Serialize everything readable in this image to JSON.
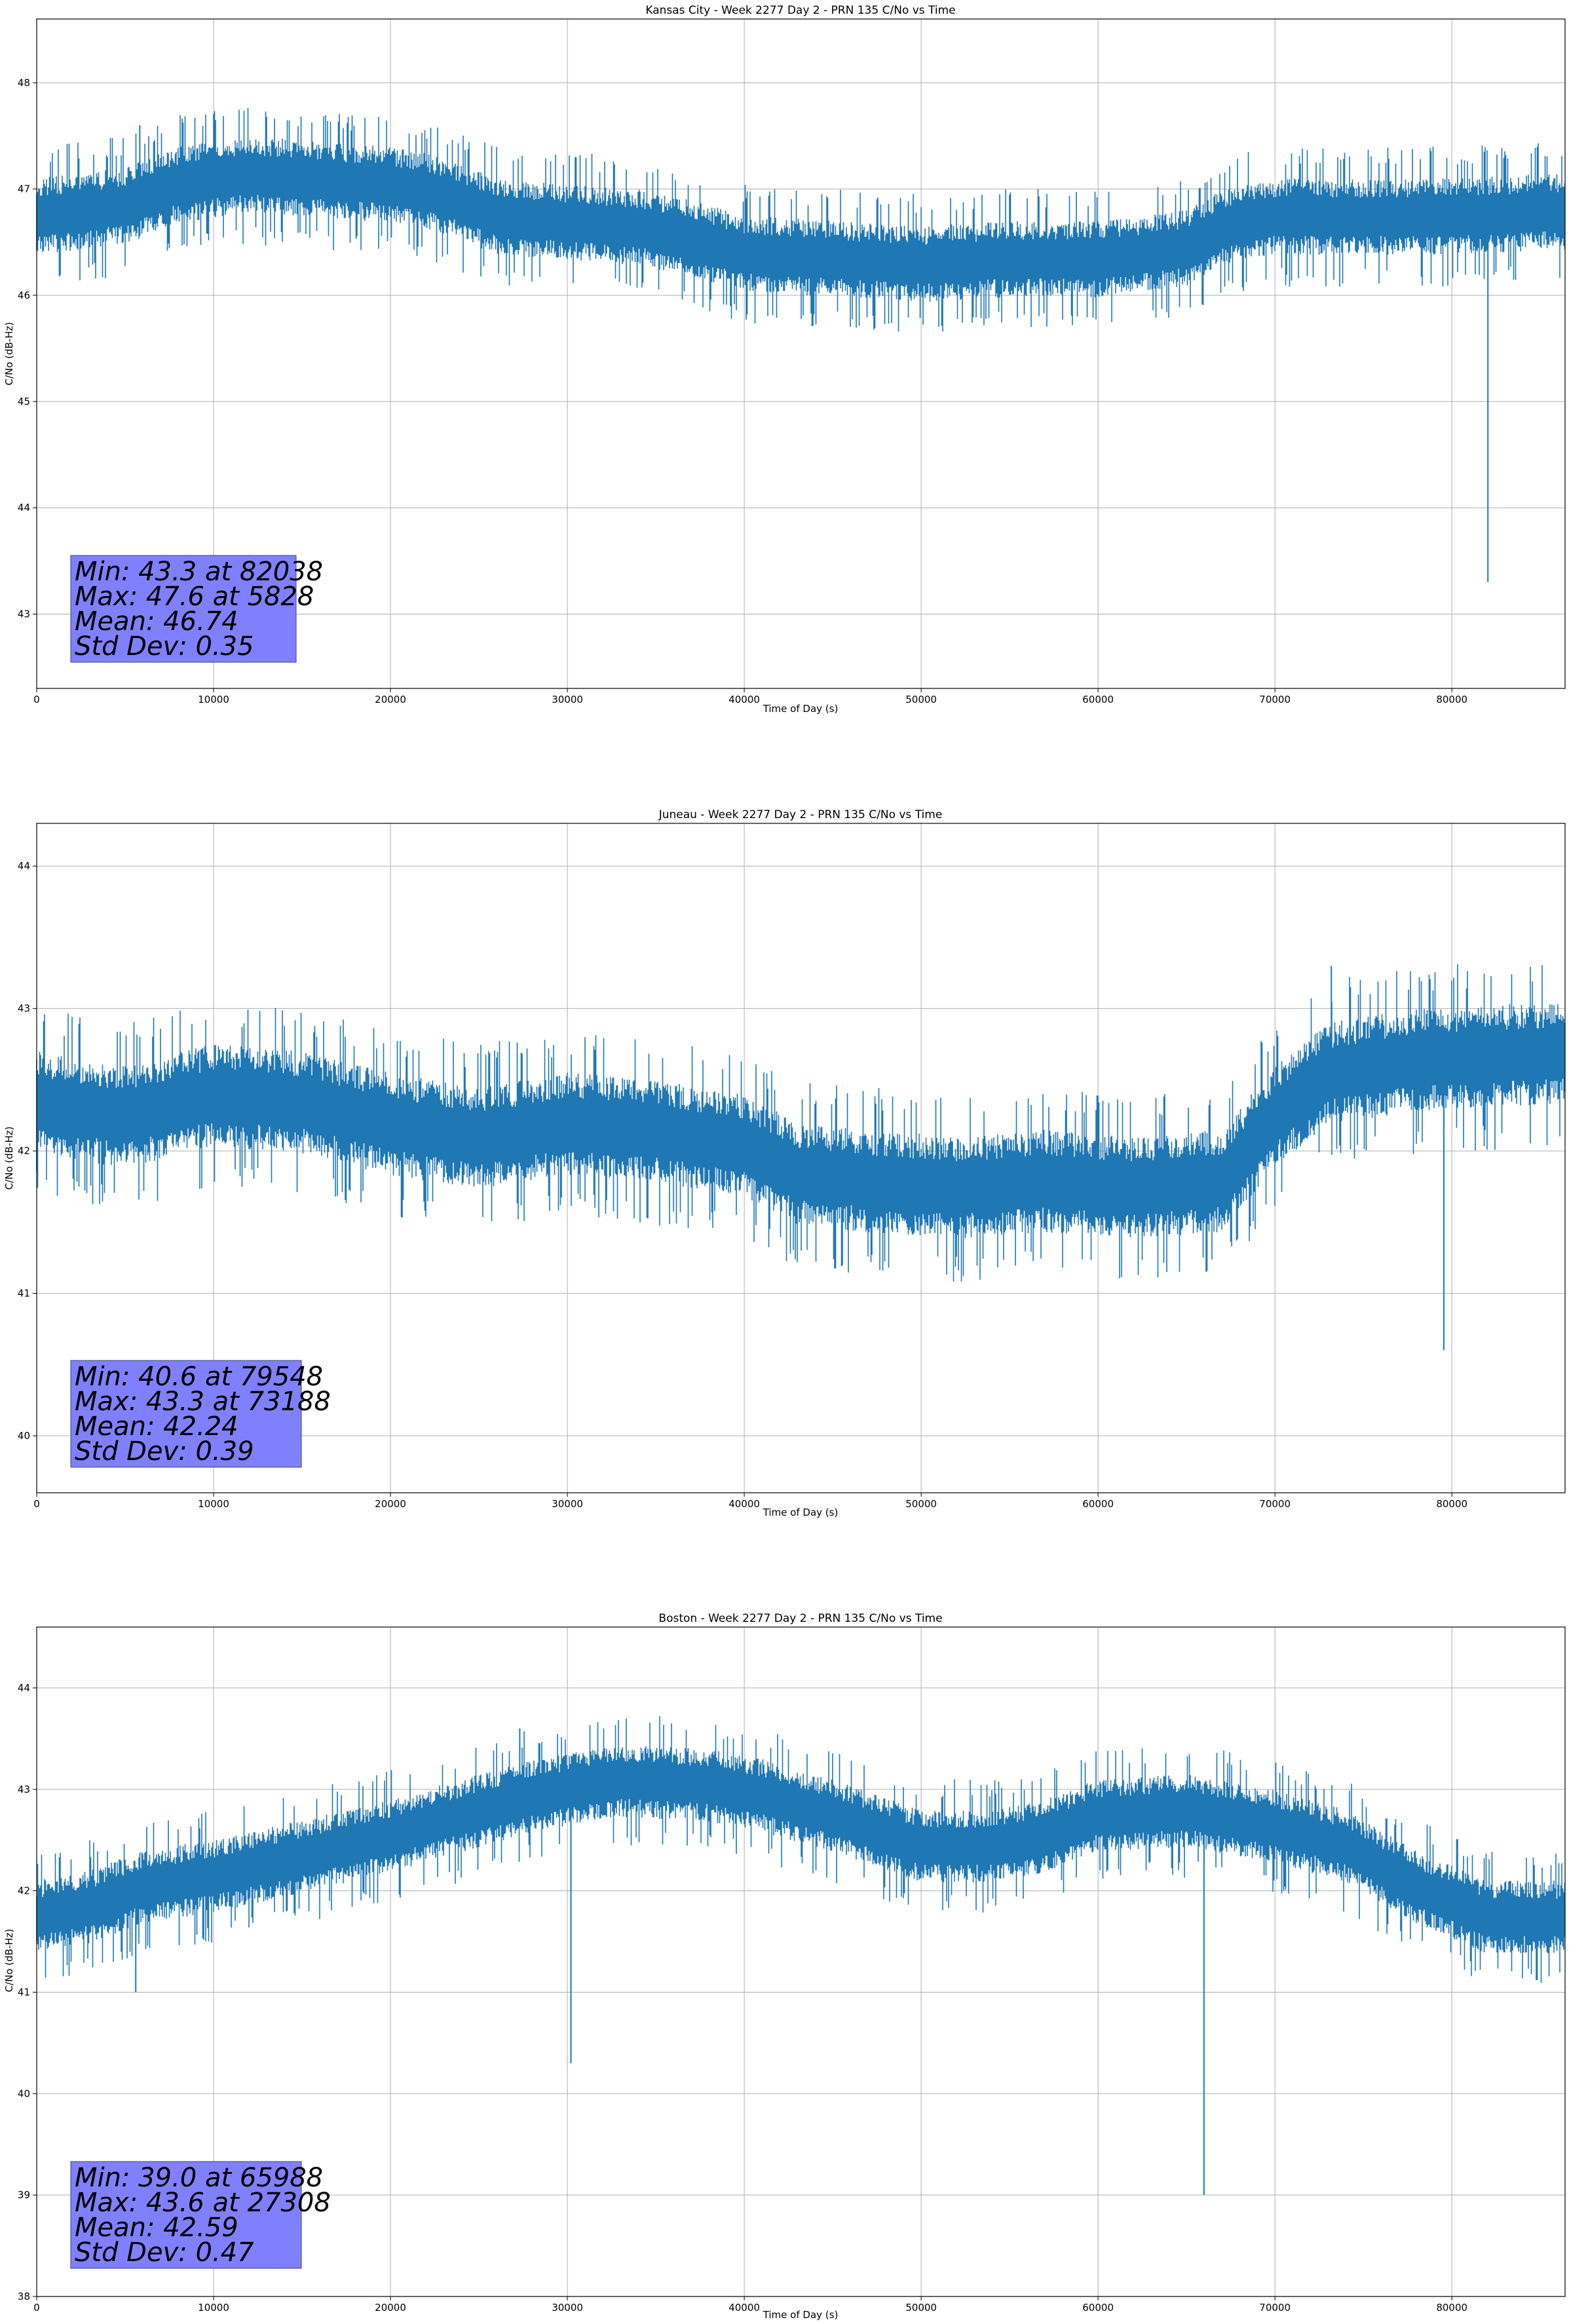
{
  "chart_data": [
    {
      "type": "line",
      "title": "Kansas City - Week 2277 Day 2 - PRN 135 C/No vs Time",
      "xlabel": "Time of Day (s)",
      "ylabel": "C/No (dB-Hz)",
      "xlim": [
        0,
        86400
      ],
      "ylim": [
        42.3,
        48.6
      ],
      "xticks": [
        0,
        10000,
        20000,
        30000,
        40000,
        50000,
        60000,
        70000,
        80000
      ],
      "yticks": [
        43,
        44,
        45,
        46,
        47,
        48
      ],
      "grid": true,
      "line_color": "#1f77b4",
      "stats_box_color": "#8080ff",
      "stats": [
        "Min: 43.3 at 82038",
        "Max: 47.6 at 5828",
        "Mean: 46.74",
        "Std Dev: 0.35"
      ],
      "trend": [
        [
          0,
          46.8
        ],
        [
          5000,
          46.9
        ],
        [
          8000,
          47.1
        ],
        [
          12000,
          47.2
        ],
        [
          16000,
          47.15
        ],
        [
          20000,
          47.1
        ],
        [
          23000,
          47.0
        ],
        [
          26000,
          46.8
        ],
        [
          30000,
          46.75
        ],
        [
          34000,
          46.7
        ],
        [
          37000,
          46.6
        ],
        [
          40000,
          46.45
        ],
        [
          45000,
          46.4
        ],
        [
          50000,
          46.35
        ],
        [
          55000,
          46.4
        ],
        [
          60000,
          46.4
        ],
        [
          65000,
          46.5
        ],
        [
          67000,
          46.7
        ],
        [
          70000,
          46.8
        ],
        [
          75000,
          46.8
        ],
        [
          80000,
          46.8
        ],
        [
          86400,
          46.85
        ]
      ],
      "spikes": [
        [
          82038,
          43.3
        ],
        [
          5828,
          47.6
        ]
      ]
    },
    {
      "type": "line",
      "title": "Juneau - Week 2277 Day 2 - PRN 135 C/No vs Time",
      "xlabel": "Time of Day (s)",
      "ylabel": "C/No (dB-Hz)",
      "xlim": [
        0,
        86400
      ],
      "ylim": [
        39.6,
        44.3
      ],
      "xticks": [
        0,
        10000,
        20000,
        30000,
        40000,
        50000,
        60000,
        70000,
        80000
      ],
      "yticks": [
        40,
        41,
        42,
        43,
        44
      ],
      "grid": true,
      "line_color": "#1f77b4",
      "stats_box_color": "#8080ff",
      "stats": [
        "Min: 40.6 at 79548",
        "Max: 43.3 at 73188",
        "Mean: 42.24",
        "Std Dev: 0.39"
      ],
      "trend": [
        [
          0,
          42.4
        ],
        [
          5000,
          42.3
        ],
        [
          10000,
          42.45
        ],
        [
          15000,
          42.4
        ],
        [
          20000,
          42.25
        ],
        [
          25000,
          42.15
        ],
        [
          30000,
          42.25
        ],
        [
          35000,
          42.2
        ],
        [
          40000,
          42.1
        ],
        [
          43000,
          41.9
        ],
        [
          47000,
          41.85
        ],
        [
          52000,
          41.8
        ],
        [
          57000,
          41.85
        ],
        [
          62000,
          41.8
        ],
        [
          67000,
          41.85
        ],
        [
          70000,
          42.3
        ],
        [
          73000,
          42.6
        ],
        [
          78000,
          42.7
        ],
        [
          86400,
          42.75
        ]
      ],
      "spikes": [
        [
          79548,
          40.6
        ],
        [
          73188,
          43.3
        ]
      ]
    },
    {
      "type": "line",
      "title": "Boston - Week 2277 Day 2 - PRN 135 C/No vs Time",
      "xlabel": "Time of Day (s)",
      "ylabel": "C/No (dB-Hz)",
      "xlim": [
        0,
        86400
      ],
      "ylim": [
        38.0,
        44.6
      ],
      "xticks": [
        0,
        10000,
        20000,
        30000,
        40000,
        50000,
        60000,
        70000,
        80000
      ],
      "yticks": [
        38,
        39,
        40,
        41,
        42,
        43,
        44
      ],
      "grid": true,
      "line_color": "#1f77b4",
      "stats_box_color": "#8080ff",
      "stats": [
        "Min: 39.0 at 65988",
        "Max: 43.6 at 27308",
        "Mean: 42.59",
        "Std Dev: 0.47"
      ],
      "trend": [
        [
          0,
          41.8
        ],
        [
          3000,
          41.9
        ],
        [
          6000,
          42.1
        ],
        [
          10000,
          42.2
        ],
        [
          15000,
          42.4
        ],
        [
          20000,
          42.6
        ],
        [
          24000,
          42.8
        ],
        [
          28000,
          43.0
        ],
        [
          33000,
          43.15
        ],
        [
          38000,
          43.1
        ],
        [
          41000,
          43.0
        ],
        [
          45000,
          42.8
        ],
        [
          50000,
          42.5
        ],
        [
          54000,
          42.5
        ],
        [
          57000,
          42.6
        ],
        [
          60000,
          42.8
        ],
        [
          65000,
          42.85
        ],
        [
          70000,
          42.7
        ],
        [
          74000,
          42.5
        ],
        [
          78000,
          42.1
        ],
        [
          82000,
          41.8
        ],
        [
          86400,
          41.8
        ]
      ],
      "spikes": [
        [
          65988,
          39.0
        ],
        [
          27308,
          43.6
        ],
        [
          30200,
          40.3
        ],
        [
          5600,
          41.0
        ]
      ]
    }
  ]
}
